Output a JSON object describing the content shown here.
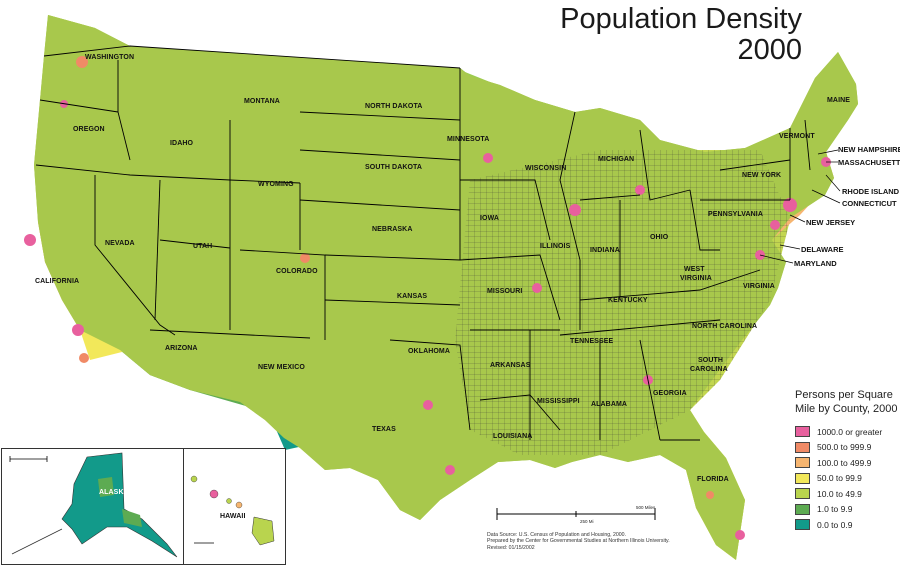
{
  "title": {
    "line1": "Population Density",
    "line2": "2000"
  },
  "legend": {
    "title_line1": "Persons per Square",
    "title_line2": "Mile by County, 2000",
    "items": [
      {
        "label": "1000.0 or greater",
        "color": "#e8609e"
      },
      {
        "label": "500.0 to 999.9",
        "color": "#f08a66"
      },
      {
        "label": "100.0 to 499.9",
        "color": "#f6b570"
      },
      {
        "label": "50.0 to 99.9",
        "color": "#f2e85a"
      },
      {
        "label": "10.0 to 49.9",
        "color": "#b9d44e"
      },
      {
        "label": "1.0 to 9.9",
        "color": "#5dab52"
      },
      {
        "label": "0.0 to 0.9",
        "color": "#129a8a"
      }
    ]
  },
  "states": {
    "washington": "WASHINGTON",
    "oregon": "OREGON",
    "california": "CALIFORNIA",
    "nevada": "NEVADA",
    "idaho": "IDAHO",
    "montana": "MONTANA",
    "wyoming": "WYOMING",
    "utah": "UTAH",
    "arizona": "ARIZONA",
    "colorado": "COLORADO",
    "new_mexico": "NEW MEXICO",
    "north_dakota": "NORTH DAKOTA",
    "south_dakota": "SOUTH DAKOTA",
    "nebraska": "NEBRASKA",
    "kansas": "KANSAS",
    "oklahoma": "OKLAHOMA",
    "texas": "TEXAS",
    "minnesota": "MINNESOTA",
    "iowa": "IOWA",
    "missouri": "MISSOURI",
    "arkansas": "ARKANSAS",
    "louisiana": "LOUISIANA",
    "wisconsin": "WISCONSIN",
    "illinois": "ILLINOIS",
    "michigan": "MICHIGAN",
    "indiana": "INDIANA",
    "ohio": "OHIO",
    "kentucky": "KENTUCKY",
    "tennessee": "TENNESSEE",
    "mississippi": "MISSISSIPPI",
    "alabama": "ALABAMA",
    "georgia": "GEORGIA",
    "florida": "FLORIDA",
    "south_carolina_1": "SOUTH",
    "south_carolina_2": "CAROLINA",
    "north_carolina": "NORTH CAROLINA",
    "virginia": "VIRGINIA",
    "west_virginia_1": "WEST",
    "west_virginia_2": "VIRGINIA",
    "pennsylvania": "PENNSYLVANIA",
    "new_york": "NEW YORK",
    "vermont": "VERMONT",
    "maine": "MAINE",
    "new_hampshire": "NEW HAMPSHIRE",
    "massachusetts": "MASSACHUSETTS",
    "rhode_island": "RHODE ISLAND",
    "connecticut": "CONNECTICUT",
    "new_jersey": "NEW JERSEY",
    "delaware": "DELAWARE",
    "maryland": "MARYLAND",
    "alaska": "ALASKA",
    "hawaii": "HAWAII"
  },
  "scale_bar": {
    "label": "500 Miles",
    "mid_label": "250 Mi"
  },
  "credits": {
    "line1": "Data Source: U.S. Census of Population and Housing, 2000.",
    "line2": "Prepared by the Center for Governmental Studies at Northern Illinois University.",
    "line3": "Revised: 01/15/2002"
  }
}
